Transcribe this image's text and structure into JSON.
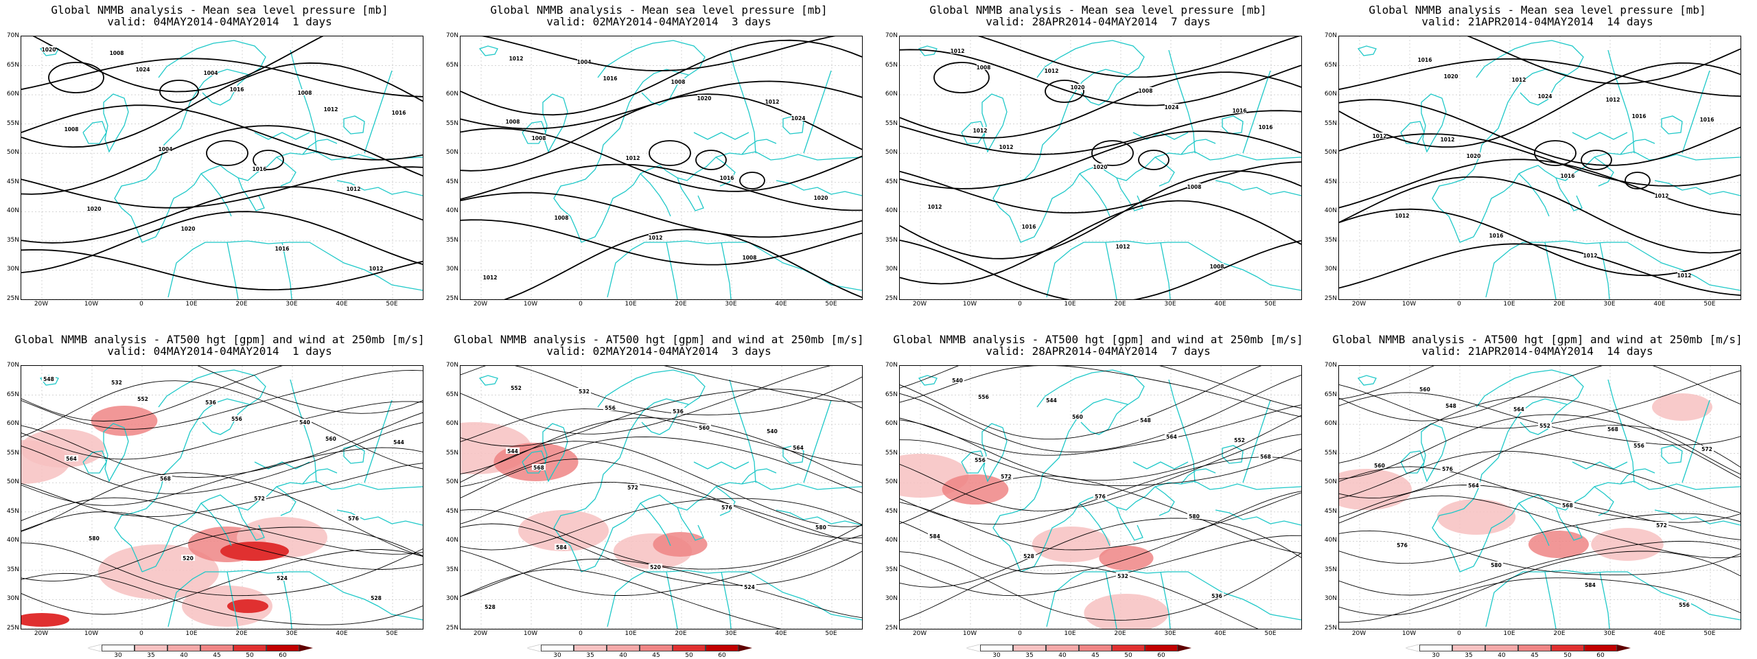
{
  "colors": {
    "coast": "#1ec8c8",
    "contour": "#000000",
    "wind_light": "#f7c1c1",
    "wind_mid": "#ef8585",
    "wind_strong": "#e03030",
    "wind_max": "#c00000"
  },
  "axes": {
    "lat_labels": [
      "70N",
      "65N",
      "60N",
      "55N",
      "50N",
      "45N",
      "40N",
      "35N",
      "30N",
      "25N"
    ],
    "lon_labels": [
      "20W",
      "10W",
      "0",
      "10E",
      "20E",
      "30E",
      "40E",
      "50E"
    ]
  },
  "mslp_title": "Global NMMB analysis - Mean sea level pressure [mb]",
  "z500_title": "Global NMMB analysis - AT500 hgt [gpm] and wind at 250mb [m/s]",
  "panels": [
    {
      "valid": "valid: 04MAY2014-04MAY2014  1 days"
    },
    {
      "valid": "valid: 02MAY2014-04MAY2014  3 days"
    },
    {
      "valid": "valid: 28APR2014-04MAY2014  7 days"
    },
    {
      "valid": "valid: 21APR2014-04MAY2014  14 days"
    }
  ],
  "mslp_contour_labels": [
    [
      "1020",
      "1024",
      "1016",
      "1012",
      "1008",
      "1004",
      "1016",
      "1012",
      "1020",
      "1020",
      "1016",
      "1012",
      "1008",
      "1004",
      "1008",
      "1016"
    ],
    [
      "1012",
      "1016",
      "1020",
      "1024",
      "1008",
      "1012",
      "1016",
      "1020",
      "1008",
      "1012",
      "1008",
      "1012",
      "1004",
      "1008",
      "1012",
      "1008"
    ],
    [
      "1008",
      "1020",
      "1024",
      "1016",
      "1012",
      "1020",
      "1008",
      "1012",
      "1016",
      "1012",
      "1008",
      "1012",
      "1012",
      "1008",
      "1016",
      "1012"
    ],
    [
      "1020",
      "1024",
      "1016",
      "1012",
      "1020",
      "1016",
      "1012",
      "1012",
      "1016",
      "1012",
      "1012",
      "1016",
      "1012",
      "1012",
      "1016",
      "1012"
    ]
  ],
  "z500_contour_labels": [
    [
      "548",
      "552",
      "556",
      "560",
      "564",
      "568",
      "572",
      "576",
      "580",
      "520",
      "524",
      "528",
      "532",
      "536",
      "540",
      "544"
    ],
    [
      "552",
      "556",
      "560",
      "564",
      "568",
      "572",
      "576",
      "580",
      "584",
      "520",
      "524",
      "528",
      "532",
      "536",
      "540",
      "544"
    ],
    [
      "556",
      "560",
      "564",
      "568",
      "572",
      "576",
      "580",
      "584",
      "528",
      "532",
      "536",
      "540",
      "544",
      "548",
      "552",
      "556"
    ],
    [
      "548",
      "552",
      "556",
      "560",
      "564",
      "568",
      "572",
      "576",
      "580",
      "584",
      "556",
      "560",
      "564",
      "568",
      "572",
      "576"
    ]
  ],
  "colorbar": {
    "ticks": [
      "30",
      "35",
      "40",
      "45",
      "50",
      "60"
    ]
  }
}
